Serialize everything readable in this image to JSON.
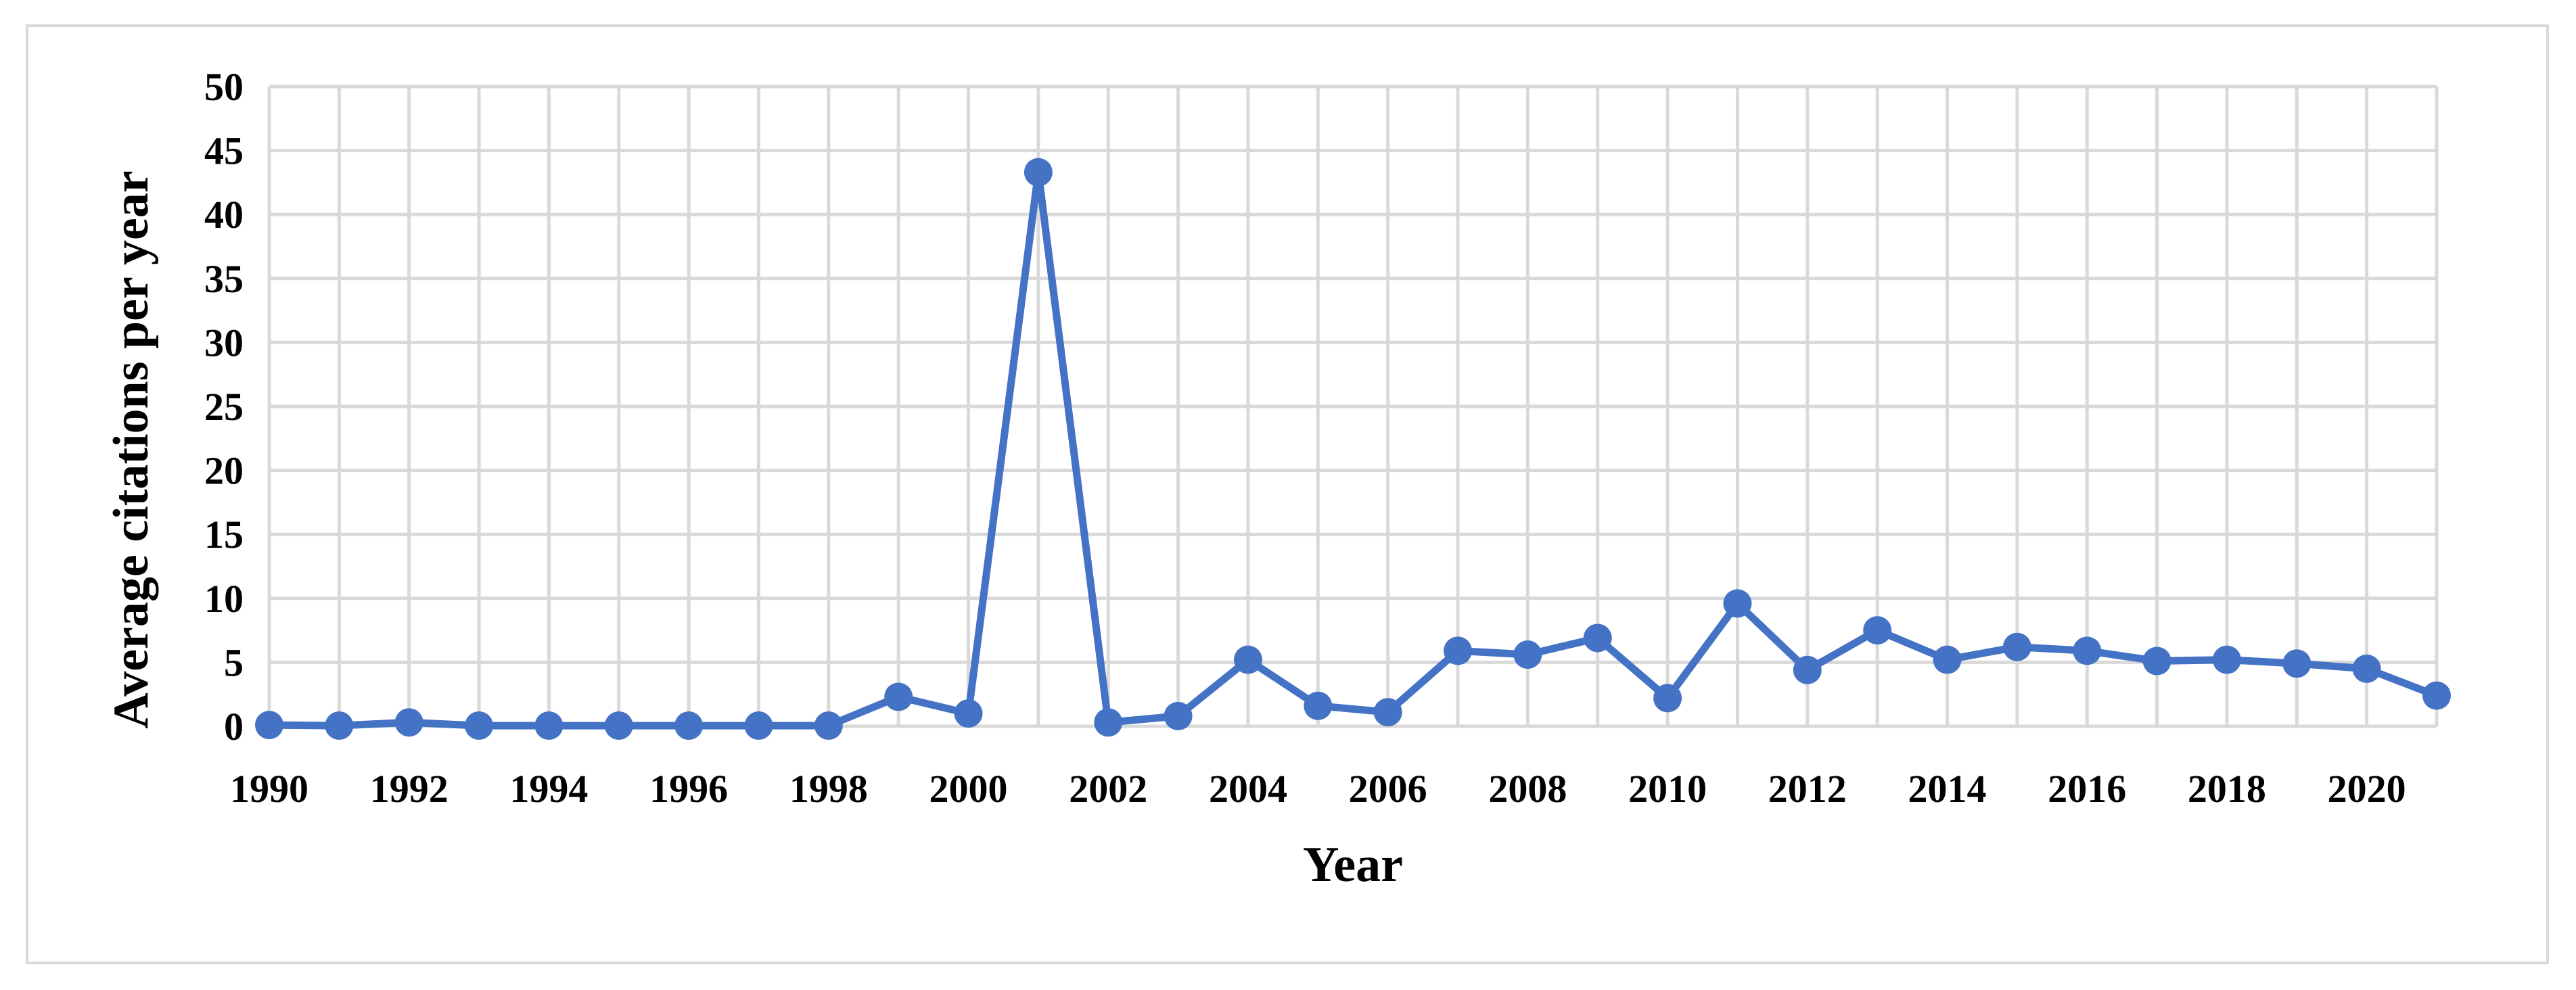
{
  "chart_data": {
    "type": "line",
    "title": "",
    "xlabel": "Year",
    "ylabel": "Average citations per year",
    "ylim": [
      0,
      50
    ],
    "y_ticks": [
      0,
      5,
      10,
      15,
      20,
      25,
      30,
      35,
      40,
      45,
      50
    ],
    "x_range": [
      1990,
      2021
    ],
    "x_ticks": [
      1990,
      1992,
      1994,
      1996,
      1998,
      2000,
      2002,
      2004,
      2006,
      2008,
      2010,
      2012,
      2014,
      2016,
      2018,
      2020
    ],
    "grid": true,
    "legend": "none",
    "series": [
      {
        "color": "#4472c4",
        "marker": "circle",
        "x": [
          1990,
          1991,
          1992,
          1993,
          1994,
          1995,
          1996,
          1997,
          1998,
          1999,
          2000,
          2001,
          2002,
          2003,
          2004,
          2005,
          2006,
          2007,
          2008,
          2009,
          2010,
          2011,
          2012,
          2013,
          2014,
          2015,
          2016,
          2017,
          2018,
          2019,
          2020,
          2021
        ],
        "values": [
          0.1,
          0.05,
          0.3,
          0.05,
          0.05,
          0.05,
          0.05,
          0.05,
          0.05,
          2.3,
          1.0,
          43.3,
          0.3,
          0.8,
          5.2,
          1.6,
          1.1,
          5.9,
          5.6,
          6.9,
          2.2,
          9.6,
          4.4,
          7.5,
          5.2,
          6.2,
          5.9,
          5.1,
          5.2,
          4.9,
          4.5,
          2.4
        ]
      }
    ],
    "colors": {
      "line": "#4472c4",
      "grid": "#d9d9d9",
      "frame": "#d9d9d9"
    }
  }
}
